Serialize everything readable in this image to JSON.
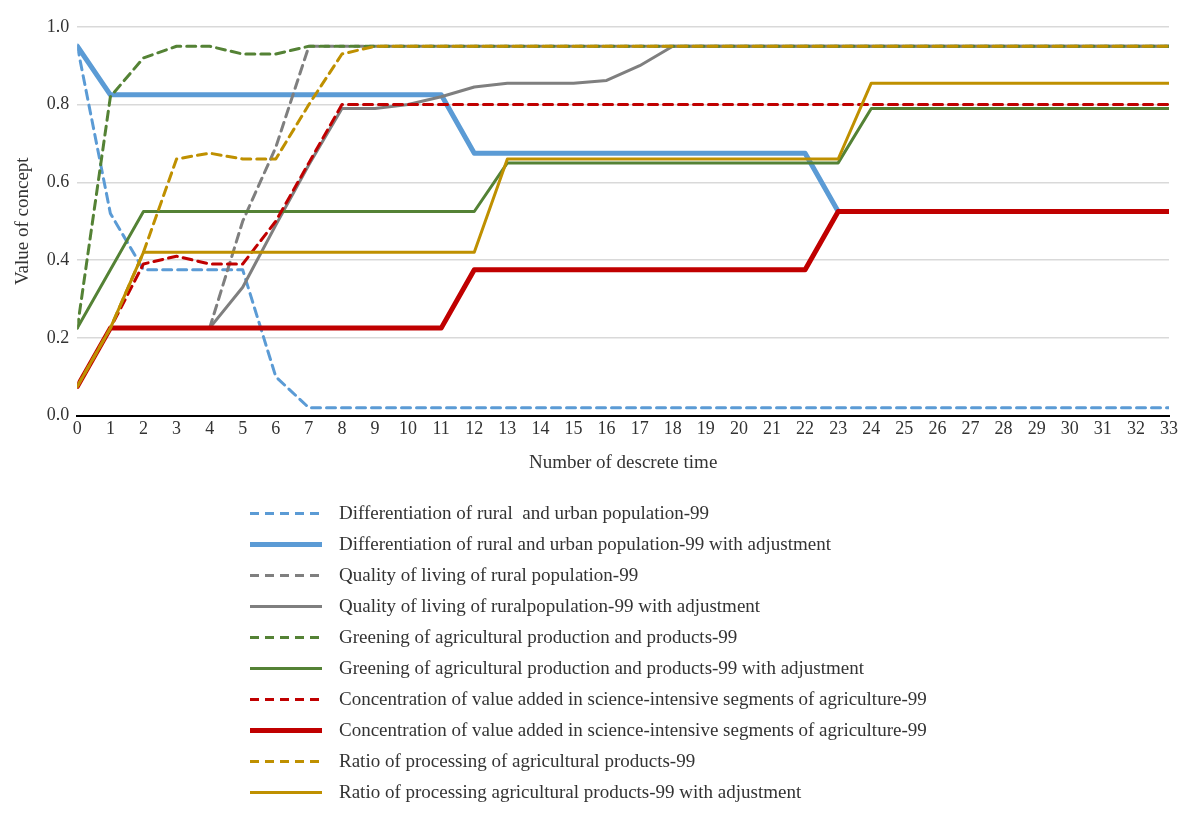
{
  "chart_data": {
    "type": "line",
    "xlabel": "Number of descrete time",
    "ylabel": "Value of concept",
    "x": [
      0,
      1,
      2,
      3,
      4,
      5,
      6,
      7,
      8,
      9,
      10,
      11,
      12,
      13,
      14,
      15,
      16,
      17,
      18,
      19,
      20,
      21,
      22,
      23,
      24,
      25,
      26,
      27,
      28,
      29,
      30,
      31,
      32,
      33
    ],
    "xlim": [
      0,
      33
    ],
    "xticks": [
      0,
      1,
      2,
      3,
      4,
      5,
      6,
      7,
      8,
      9,
      10,
      11,
      12,
      13,
      14,
      15,
      16,
      17,
      18,
      19,
      20,
      21,
      22,
      23,
      24,
      25,
      26,
      27,
      28,
      29,
      30,
      31,
      32,
      33
    ],
    "ylim": [
      0,
      1
    ],
    "yticks": [
      {
        "value": 0,
        "label": "0.0"
      },
      0.2,
      0.4,
      0.6,
      0.8,
      {
        "value": 1,
        "label": "1.0"
      }
    ],
    "grid": "y",
    "legend": "bottom",
    "marker": "none",
    "series": [
      {
        "name": "Differentiation of rural  and urban population-99",
        "color": "#5b9bd5",
        "line_style": "dashed",
        "values": [
          0.95,
          0.52,
          0.375,
          0.375,
          0.375,
          0.375,
          0.1,
          0.02,
          0.02,
          0.02,
          0.02,
          0.02,
          0.02,
          0.02,
          0.02,
          0.02,
          0.02,
          0.02,
          0.02,
          0.02,
          0.02,
          0.02,
          0.02,
          0.02,
          0.02,
          0.02,
          0.02,
          0.02,
          0.02,
          0.02,
          0.02,
          0.02,
          0.02,
          0.02
        ]
      },
      {
        "name": "Differentiation of rural and urban population-99 with adjustment",
        "color": "#5b9bd5",
        "line_style": "solid",
        "values": [
          0.95,
          0.825,
          0.825,
          0.825,
          0.825,
          0.825,
          0.825,
          0.825,
          0.825,
          0.825,
          0.825,
          0.825,
          0.675,
          0.675,
          0.675,
          0.675,
          0.675,
          0.675,
          0.675,
          0.675,
          0.675,
          0.675,
          0.675,
          0.525,
          null,
          null,
          null,
          null,
          null,
          null,
          null,
          null,
          null,
          null
        ]
      },
      {
        "name": "Quality of living of rural population-99",
        "color": "#7f7f7f",
        "line_style": "dashed",
        "values": [
          null,
          null,
          null,
          null,
          0.225,
          0.5,
          0.69,
          0.95,
          0.95,
          0.95,
          0.95,
          0.95,
          0.95,
          0.95,
          0.95,
          0.95,
          0.95,
          0.95,
          0.95,
          0.95,
          0.95,
          0.95,
          0.95,
          0.95,
          0.95,
          0.95,
          0.95,
          0.95,
          0.95,
          0.95,
          0.95,
          0.95,
          0.95,
          0.95
        ]
      },
      {
        "name": "Quality of living of ruralpopulation-99 with adjustment",
        "color": "#7f7f7f",
        "line_style": "solid",
        "values": [
          null,
          null,
          null,
          null,
          0.225,
          0.33,
          0.49,
          0.645,
          0.79,
          0.79,
          0.8,
          0.82,
          0.845,
          0.855,
          0.855,
          0.855,
          0.862,
          0.9,
          0.95,
          0.95,
          0.95,
          0.95,
          0.95,
          0.95,
          0.95,
          0.95,
          0.95,
          0.95,
          0.95,
          0.95,
          0.95,
          0.95,
          0.95,
          0.95
        ]
      },
      {
        "name": "Greening of agricultural production and products-99",
        "color": "#548235",
        "line_style": "dashed",
        "values": [
          0.225,
          0.82,
          0.92,
          0.95,
          0.95,
          0.93,
          0.93,
          0.95,
          0.95,
          0.95,
          0.95,
          0.95,
          0.95,
          0.95,
          0.95,
          0.95,
          0.95,
          0.95,
          0.95,
          0.95,
          0.95,
          0.95,
          0.95,
          0.95,
          0.95,
          0.95,
          0.95,
          0.95,
          0.95,
          0.95,
          0.95,
          0.95,
          0.95,
          0.95
        ]
      },
      {
        "name": "Greening of agricultural production and products-99 with adjustment",
        "color": "#548235",
        "line_style": "solid",
        "values": [
          0.225,
          0.375,
          0.525,
          0.525,
          0.525,
          0.525,
          0.525,
          0.525,
          0.525,
          0.525,
          0.525,
          0.525,
          0.525,
          0.65,
          0.65,
          0.65,
          0.65,
          0.65,
          0.65,
          0.65,
          0.65,
          0.65,
          0.65,
          0.65,
          0.79,
          0.79,
          0.79,
          0.79,
          0.79,
          0.79,
          0.79,
          0.79,
          0.79,
          0.79
        ]
      },
      {
        "name": "Concentration of value added in science-intensive segments of agriculture-99",
        "color": "#c00000",
        "line_style": "dashed",
        "values": [
          0.075,
          0.225,
          0.39,
          0.41,
          0.39,
          0.39,
          0.5,
          0.65,
          0.8,
          0.8,
          0.8,
          0.8,
          0.8,
          0.8,
          0.8,
          0.8,
          0.8,
          0.8,
          0.8,
          0.8,
          0.8,
          0.8,
          0.8,
          0.8,
          0.8,
          0.8,
          0.8,
          0.8,
          0.8,
          0.8,
          0.8,
          0.8,
          0.8,
          0.8
        ]
      },
      {
        "name": "Concentration of value added in science-intensive segments of agriculture-99",
        "color": "#c00000",
        "line_style": "solid",
        "values": [
          0.075,
          0.225,
          0.225,
          0.225,
          0.225,
          0.225,
          0.225,
          0.225,
          0.225,
          0.225,
          0.225,
          0.225,
          0.375,
          0.375,
          0.375,
          0.375,
          0.375,
          0.375,
          0.375,
          0.375,
          0.375,
          0.375,
          0.375,
          0.525,
          0.525,
          0.525,
          0.525,
          0.525,
          0.525,
          0.525,
          0.525,
          0.525,
          0.525,
          0.525
        ]
      },
      {
        "name": "Ratio of processing of agricultural products-99",
        "color": "#bf9000",
        "line_style": "dashed",
        "values": [
          0.075,
          0.225,
          0.42,
          0.66,
          0.675,
          0.66,
          0.66,
          0.8,
          0.93,
          0.95,
          0.95,
          0.95,
          0.95,
          0.95,
          0.95,
          0.95,
          0.95,
          0.95,
          0.95,
          0.95,
          0.95,
          0.95,
          0.95,
          0.95,
          0.95,
          0.95,
          0.95,
          0.95,
          0.95,
          0.95,
          0.95,
          0.95,
          0.95,
          0.95
        ]
      },
      {
        "name": "Ratio of processing agricultural products-99 with adjustment",
        "color": "#bf9000",
        "line_style": "solid",
        "values": [
          0.075,
          0.225,
          0.42,
          0.42,
          0.42,
          0.42,
          0.42,
          0.42,
          0.42,
          0.42,
          0.42,
          0.42,
          0.42,
          0.66,
          0.66,
          0.66,
          0.66,
          0.66,
          0.66,
          0.66,
          0.66,
          0.66,
          0.66,
          0.66,
          0.855,
          0.855,
          0.855,
          0.855,
          0.855,
          0.855,
          0.855,
          0.855,
          0.855,
          0.855
        ]
      }
    ]
  }
}
